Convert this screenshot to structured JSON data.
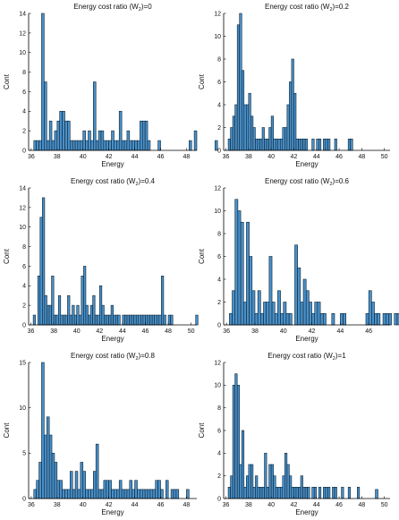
{
  "chart_data": [
    {
      "type": "bar",
      "title": "Energy cost ratio (W",
      "title_subscript": "2",
      "title_suffix": ")=0",
      "xlabel": "Energy",
      "ylabel": "Cont",
      "xlim": [
        35.8,
        48.8
      ],
      "ylim": [
        0,
        14
      ],
      "xticks": [
        36,
        38,
        40,
        42,
        44,
        46,
        48
      ],
      "yticks": [
        0,
        2,
        4,
        6,
        8,
        10,
        12,
        14
      ],
      "bin_width": 0.2,
      "bin_start": 36.2,
      "values": [
        1,
        1,
        1,
        14,
        7,
        1,
        3,
        1,
        2,
        3,
        4,
        4,
        3,
        3,
        1,
        1,
        1,
        1,
        1,
        2,
        1,
        2,
        1,
        7,
        1,
        2,
        2,
        1,
        1,
        1,
        2,
        1,
        1,
        4,
        1,
        1,
        2,
        1,
        1,
        1,
        1,
        3,
        3,
        3,
        1,
        0,
        0,
        0,
        1,
        0,
        0,
        0,
        0,
        0,
        0,
        0,
        0,
        0,
        0,
        0,
        1,
        0,
        2,
        0,
        0,
        0,
        0,
        0,
        0,
        0,
        1,
        0,
        0,
        0,
        0,
        0,
        1
      ]
    },
    {
      "type": "bar",
      "title": "Energy cost ratio (W",
      "title_subscript": "2",
      "title_suffix": ")=0.2",
      "xlabel": "Energy",
      "ylabel": "Cont",
      "xlim": [
        35.8,
        50.5
      ],
      "ylim": [
        0,
        12
      ],
      "xticks": [
        36,
        38,
        40,
        42,
        44,
        46,
        48,
        50
      ],
      "yticks": [
        0,
        2,
        4,
        6,
        8,
        10,
        12
      ],
      "bin_width": 0.2,
      "bin_start": 36.2,
      "values": [
        1,
        2,
        3,
        4,
        11,
        12,
        7,
        4,
        4,
        5,
        3,
        2,
        1,
        1,
        1,
        2,
        1,
        1,
        2,
        3,
        1,
        1,
        1,
        1,
        2,
        2,
        4,
        6,
        8,
        5,
        1,
        1,
        1,
        1,
        1,
        0,
        0,
        1,
        0,
        1,
        1,
        0,
        1,
        1,
        1,
        0,
        0,
        1,
        0,
        0,
        0,
        0,
        0,
        1,
        1,
        0,
        0,
        0,
        0,
        0,
        0,
        0,
        0,
        0,
        0,
        0,
        0,
        0,
        0,
        0,
        0,
        0,
        0,
        0,
        0,
        0,
        0,
        0,
        0,
        0,
        0,
        0,
        0,
        0,
        0,
        0,
        0,
        0,
        0,
        0,
        0,
        0,
        0,
        0,
        0,
        0,
        0,
        0,
        0,
        0,
        0,
        0,
        0,
        0,
        0,
        0,
        0,
        0,
        0,
        0,
        0,
        0,
        0,
        0,
        0,
        0,
        0,
        0,
        0,
        0,
        0,
        0,
        0,
        0,
        0,
        0,
        0,
        0,
        0,
        0,
        0,
        0,
        1
      ]
    },
    {
      "type": "bar",
      "title": "Energy cost ratio (W",
      "title_subscript": "2",
      "title_suffix": ")=0.4",
      "xlabel": "Energy",
      "ylabel": "Cont",
      "xlim": [
        35.8,
        50.5
      ],
      "ylim": [
        0,
        14
      ],
      "xticks": [
        36,
        38,
        40,
        42,
        44,
        46,
        48,
        50
      ],
      "yticks": [
        0,
        2,
        4,
        6,
        8,
        10,
        12,
        14
      ],
      "bin_width": 0.2,
      "bin_start": 36.2,
      "values": [
        1,
        0,
        5,
        11,
        13,
        3,
        2,
        2,
        5,
        1,
        1,
        3,
        1,
        1,
        1,
        3,
        1,
        2,
        1,
        2,
        1,
        5,
        6,
        2,
        1,
        2,
        3,
        1,
        1,
        4,
        2,
        1,
        1,
        1,
        2,
        1,
        1,
        1,
        0,
        1,
        1,
        1,
        1,
        1,
        1,
        1,
        1,
        1,
        1,
        1,
        1,
        1,
        1,
        1,
        1,
        1,
        5,
        1,
        0,
        1,
        1,
        0,
        0,
        0,
        0,
        0,
        0,
        0,
        0,
        0,
        0,
        1
      ]
    },
    {
      "type": "bar",
      "title": "Energy cost ratio (W",
      "title_subscript": "2",
      "title_suffix": ")=0.6",
      "xlabel": "Energy",
      "ylabel": "Cont",
      "xlim": [
        35.8,
        47.5
      ],
      "ylim": [
        0,
        12
      ],
      "xticks": [
        36,
        38,
        40,
        42,
        44,
        46
      ],
      "yticks": [
        0,
        2,
        4,
        6,
        8,
        10,
        12
      ],
      "bin_width": 0.2,
      "bin_start": 36.2,
      "values": [
        1,
        3,
        11,
        10,
        9,
        2,
        9,
        6,
        3,
        1,
        3,
        1,
        2,
        2,
        6,
        2,
        1,
        3,
        1,
        2,
        1,
        1,
        0,
        7,
        5,
        2,
        4,
        3,
        2,
        1,
        2,
        2,
        1,
        1,
        0,
        0,
        1,
        0,
        0,
        1,
        1,
        0,
        0,
        0,
        0,
        0,
        0,
        0,
        1,
        3,
        2,
        1,
        1,
        0,
        1,
        1,
        1,
        0,
        1,
        1,
        0,
        0,
        0,
        0,
        0,
        0,
        0,
        1,
        1,
        1,
        1,
        1
      ]
    },
    {
      "type": "bar",
      "title": "Energy cost ratio (W",
      "title_subscript": "2",
      "title_suffix": ")=0.8",
      "xlabel": "Energy",
      "ylabel": "Cont",
      "xlim": [
        35.8,
        48.8
      ],
      "ylim": [
        0,
        15
      ],
      "xticks": [
        36,
        38,
        40,
        42,
        44,
        46,
        48
      ],
      "yticks": [
        0,
        5,
        10,
        15
      ],
      "bin_width": 0.2,
      "bin_start": 36.2,
      "values": [
        1,
        2,
        4,
        15,
        7,
        9,
        7,
        5,
        4,
        2,
        2,
        1,
        1,
        1,
        3,
        1,
        3,
        1,
        4,
        3,
        1,
        1,
        1,
        3,
        6,
        1,
        1,
        2,
        2,
        2,
        1,
        1,
        1,
        2,
        1,
        1,
        1,
        2,
        1,
        2,
        1,
        1,
        1,
        1,
        1,
        1,
        1,
        2,
        2,
        1,
        0,
        2,
        0,
        1,
        1,
        1,
        0,
        0,
        0,
        1,
        0,
        0,
        0,
        0,
        0,
        0,
        0,
        0,
        0,
        0,
        0,
        0,
        0,
        0,
        0,
        0,
        0,
        0,
        0,
        0,
        0,
        0,
        0,
        0,
        0,
        0,
        0,
        0,
        0,
        0,
        0,
        0,
        0,
        0,
        0,
        0,
        0,
        0,
        0,
        0,
        0,
        0,
        0,
        0,
        0,
        0,
        0,
        0,
        0,
        0,
        0,
        0,
        0,
        0,
        0,
        0,
        0,
        0,
        0,
        0,
        0,
        0,
        0,
        0,
        0,
        0,
        0,
        0,
        0,
        0,
        0,
        0,
        1
      ]
    },
    {
      "type": "bar",
      "title": "Energy cost ratio (W",
      "title_subscript": "2",
      "title_suffix": ")=1",
      "xlabel": "Energy",
      "ylabel": "Cont",
      "xlim": [
        35.8,
        50.5
      ],
      "ylim": [
        0,
        12
      ],
      "xticks": [
        36,
        38,
        40,
        42,
        44,
        46,
        48,
        50
      ],
      "yticks": [
        0,
        2,
        4,
        6,
        8,
        10,
        12
      ],
      "bin_width": 0.2,
      "bin_start": 36.2,
      "values": [
        1,
        2,
        10,
        11,
        10,
        3,
        6,
        1,
        2,
        3,
        3,
        1,
        2,
        1,
        1,
        1,
        4,
        1,
        3,
        3,
        2,
        1,
        1,
        1,
        2,
        4,
        3,
        2,
        1,
        1,
        1,
        1,
        2,
        1,
        1,
        1,
        0,
        1,
        1,
        0,
        1,
        0,
        1,
        1,
        1,
        0,
        1,
        1,
        0,
        0,
        1,
        0,
        0,
        1,
        0,
        0,
        0,
        1,
        0,
        0,
        0,
        0,
        0,
        0,
        0,
        0,
        0,
        0,
        0,
        0,
        0,
        0,
        0,
        0,
        0,
        0,
        0,
        0,
        0,
        0,
        0,
        0,
        0,
        0,
        0,
        0,
        0,
        0,
        0,
        0,
        0,
        0,
        0,
        0,
        0,
        0,
        0,
        0,
        0,
        0,
        0,
        0,
        0,
        0,
        0,
        0,
        0,
        0,
        0,
        0,
        0,
        0,
        0,
        0,
        0,
        0,
        0,
        0,
        0,
        0,
        0,
        0,
        0,
        0,
        0,
        0,
        0,
        0,
        0,
        0,
        0,
        0,
        1
      ]
    }
  ],
  "colors": {
    "bar_fill": "#4a90c8",
    "bar_stroke": "#0b2233",
    "axis": "#000000"
  }
}
